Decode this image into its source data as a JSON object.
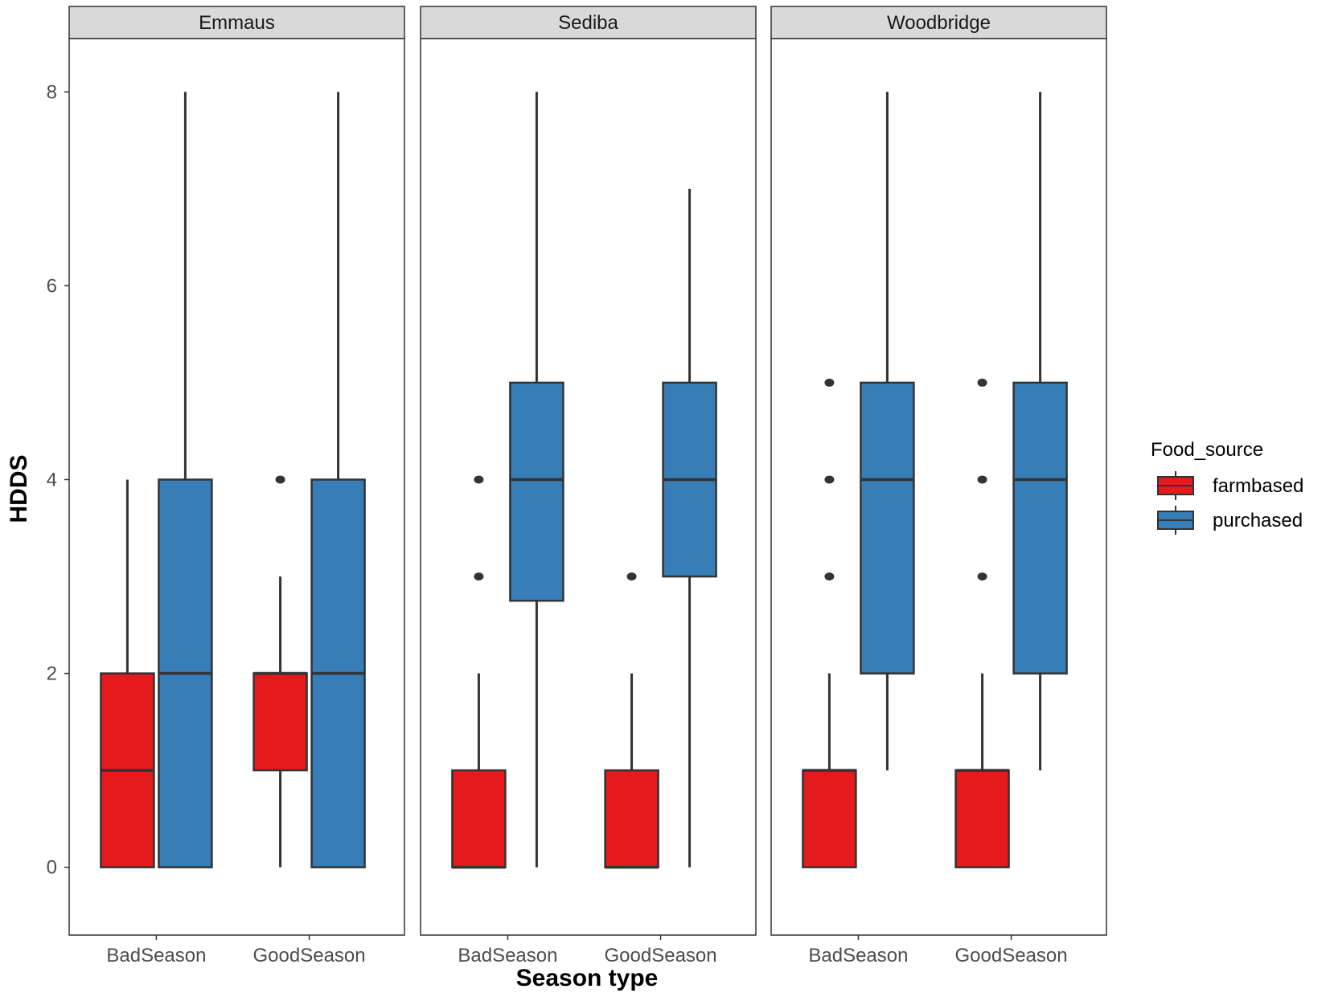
{
  "chart_data": {
    "type": "boxplot",
    "ylabel": "HDDS",
    "xlabel": "Season type",
    "ylim": [
      -0.7,
      8.55
    ],
    "yticks": [
      0,
      2,
      4,
      6,
      8
    ],
    "categories": [
      "BadSeason",
      "GoodSeason"
    ],
    "legend": {
      "title": "Food_source",
      "position": "right",
      "items": [
        {
          "name": "farmbased",
          "color": "#E41A1C"
        },
        {
          "name": "purchased",
          "color": "#377EB8"
        }
      ]
    },
    "panels": [
      {
        "name": "Emmaus",
        "groups": [
          {
            "category": "BadSeason",
            "boxes": [
              {
                "source": "farmbased",
                "lower": 0,
                "q1": 0,
                "median": 1,
                "q3": 2,
                "upper": 4,
                "outliers": []
              },
              {
                "source": "purchased",
                "lower": 0,
                "q1": 0,
                "median": 2,
                "q3": 4,
                "upper": 8,
                "outliers": []
              }
            ]
          },
          {
            "category": "GoodSeason",
            "boxes": [
              {
                "source": "farmbased",
                "lower": 0,
                "q1": 1,
                "median": 2,
                "q3": 2,
                "upper": 3,
                "outliers": [
                  4
                ]
              },
              {
                "source": "purchased",
                "lower": 0,
                "q1": 0,
                "median": 2,
                "q3": 4,
                "upper": 8,
                "outliers": []
              }
            ]
          }
        ]
      },
      {
        "name": "Sediba",
        "groups": [
          {
            "category": "BadSeason",
            "boxes": [
              {
                "source": "farmbased",
                "lower": 0,
                "q1": 0,
                "median": 0,
                "q3": 1,
                "upper": 2,
                "outliers": [
                  3,
                  4
                ]
              },
              {
                "source": "purchased",
                "lower": 0,
                "q1": 2.75,
                "median": 4,
                "q3": 5,
                "upper": 8,
                "outliers": []
              }
            ]
          },
          {
            "category": "GoodSeason",
            "boxes": [
              {
                "source": "farmbased",
                "lower": 0,
                "q1": 0,
                "median": 0,
                "q3": 1,
                "upper": 2,
                "outliers": [
                  3
                ]
              },
              {
                "source": "purchased",
                "lower": 0,
                "q1": 3,
                "median": 4,
                "q3": 5,
                "upper": 7,
                "outliers": []
              }
            ]
          }
        ]
      },
      {
        "name": "Woodbridge",
        "groups": [
          {
            "category": "BadSeason",
            "boxes": [
              {
                "source": "farmbased",
                "lower": 0,
                "q1": 0,
                "median": 1,
                "q3": 1,
                "upper": 2,
                "outliers": [
                  3,
                  4,
                  5
                ]
              },
              {
                "source": "purchased",
                "lower": 1,
                "q1": 2,
                "median": 4,
                "q3": 5,
                "upper": 8,
                "outliers": []
              }
            ]
          },
          {
            "category": "GoodSeason",
            "boxes": [
              {
                "source": "farmbased",
                "lower": 0,
                "q1": 0,
                "median": 1,
                "q3": 1,
                "upper": 2,
                "outliers": [
                  3,
                  4,
                  5
                ]
              },
              {
                "source": "purchased",
                "lower": 1,
                "q1": 2,
                "median": 4,
                "q3": 5,
                "upper": 8,
                "outliers": []
              }
            ]
          }
        ]
      }
    ]
  }
}
